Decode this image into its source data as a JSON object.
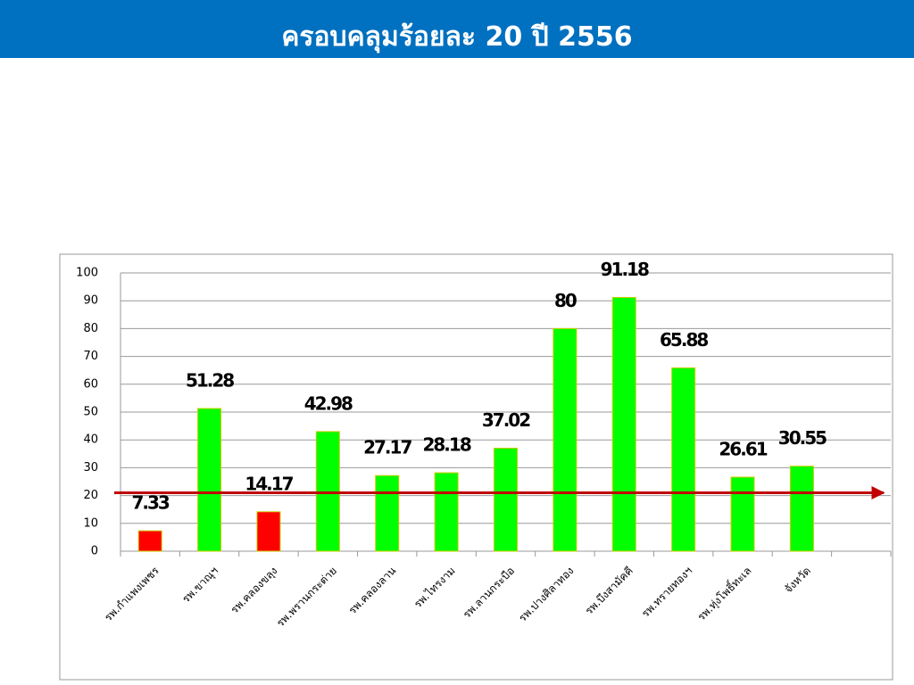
{
  "chart_data": {
    "type": "bar",
    "title": "ครอบคลุมร้อยละ 20 ปี 2556",
    "categories": [
      "รพ.กำแพงเพชร",
      "รพ.ขาณุฯ",
      "รพ.คลองขลุง",
      "รพ.พรานกระต่าย",
      "รพ.คลองลาน",
      "รพ.ไทรงาม",
      "รพ.ลานกระบือ",
      "รพ.ปางศิลาทอง",
      "รพ.บึงสามัคคี",
      "รพ.ทรายทองฯ",
      "รพ.ทุ่งโพธิ์ทะเล",
      "จังหวัด",
      null
    ],
    "values": [
      7.33,
      51.28,
      14.17,
      42.98,
      27.17,
      28.18,
      37.02,
      80,
      91.18,
      65.88,
      26.61,
      30.55,
      null
    ],
    "colors": [
      "#ff0000",
      "#00ff00",
      "#ff0000",
      "#00ff00",
      "#00ff00",
      "#00ff00",
      "#00ff00",
      "#00ff00",
      "#00ff00",
      "#00ff00",
      "#00ff00",
      "#00ff00",
      null
    ],
    "reference_line": {
      "value": 21,
      "color": "#c00000"
    },
    "ylim": [
      0,
      100
    ],
    "yticks": [
      0,
      10,
      20,
      30,
      40,
      50,
      60,
      70,
      80,
      90,
      100
    ],
    "grid": true
  }
}
